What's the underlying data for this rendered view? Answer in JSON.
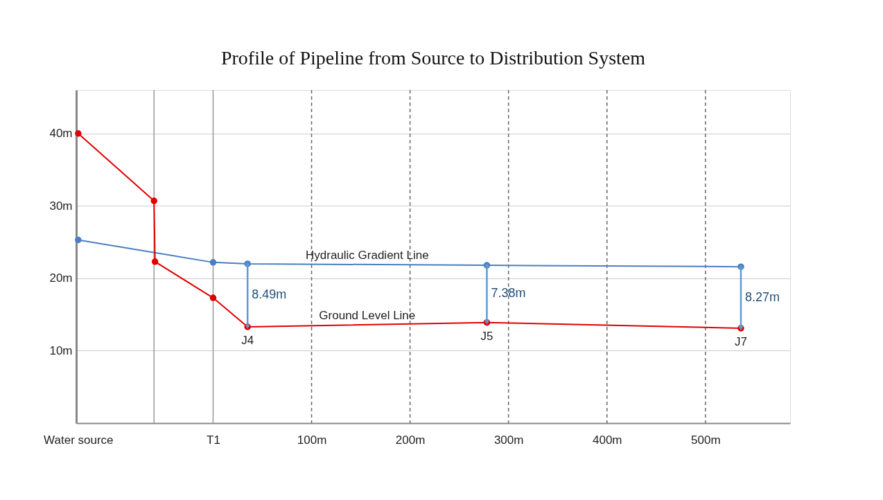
{
  "chart_data": {
    "type": "line",
    "title": "Profile of Pipeline from Source to Distribution System",
    "xlim": [
      -139,
      586
    ],
    "ylim": [
      0,
      46
    ],
    "xticks": [
      {
        "value": -137,
        "label": "Water source"
      },
      {
        "value": 0,
        "label": "T1"
      },
      {
        "value": 100,
        "label": "100m"
      },
      {
        "value": 200,
        "label": "200m"
      },
      {
        "value": 300,
        "label": "300m"
      },
      {
        "value": 400,
        "label": "400m"
      },
      {
        "value": 500,
        "label": "500m"
      }
    ],
    "yticks": [
      {
        "value": 10,
        "label": "10m"
      },
      {
        "value": 20,
        "label": "20m"
      },
      {
        "value": 30,
        "label": "30m"
      },
      {
        "value": 40,
        "label": "40m"
      }
    ],
    "grid": "y",
    "marker": "circle",
    "series": [
      {
        "color": "#4a7fc1",
        "x": [
          -137,
          0,
          35,
          278,
          536
        ],
        "values": [
          25.3,
          22.2,
          22.0,
          21.8,
          21.6
        ]
      },
      {
        "color": "#e00000",
        "x": [
          -137,
          -60,
          -59,
          0,
          35,
          278,
          536
        ],
        "values": [
          40.0,
          30.7,
          22.3,
          17.3,
          13.3,
          13.9,
          13.1
        ]
      }
    ],
    "ref_lines": [
      {
        "axis": "x",
        "value": -60,
        "line_style": "solid",
        "color": "#999999"
      },
      {
        "axis": "x",
        "value": 0,
        "line_style": "solid",
        "color": "#999999"
      },
      {
        "axis": "x",
        "value": 100,
        "line_style": "dashed",
        "color": "#666666"
      },
      {
        "axis": "x",
        "value": 200,
        "line_style": "dashed",
        "color": "#666666"
      },
      {
        "axis": "x",
        "value": 300,
        "line_style": "dashed",
        "color": "#666666"
      },
      {
        "axis": "x",
        "value": 400,
        "line_style": "dashed",
        "color": "#666666"
      },
      {
        "axis": "x",
        "value": 500,
        "line_style": "dashed",
        "color": "#666666"
      }
    ],
    "annotations": [
      "Hydraulic Gradient Line",
      "Ground Level Line",
      "8.49m",
      "7.38m",
      "8.27m",
      {
        "text": "J4",
        "x": 35,
        "y": 13.3
      },
      {
        "text": "J5",
        "x": 278,
        "y": 13.9
      },
      {
        "text": "J7",
        "x": 536,
        "y": 13.1
      }
    ]
  }
}
